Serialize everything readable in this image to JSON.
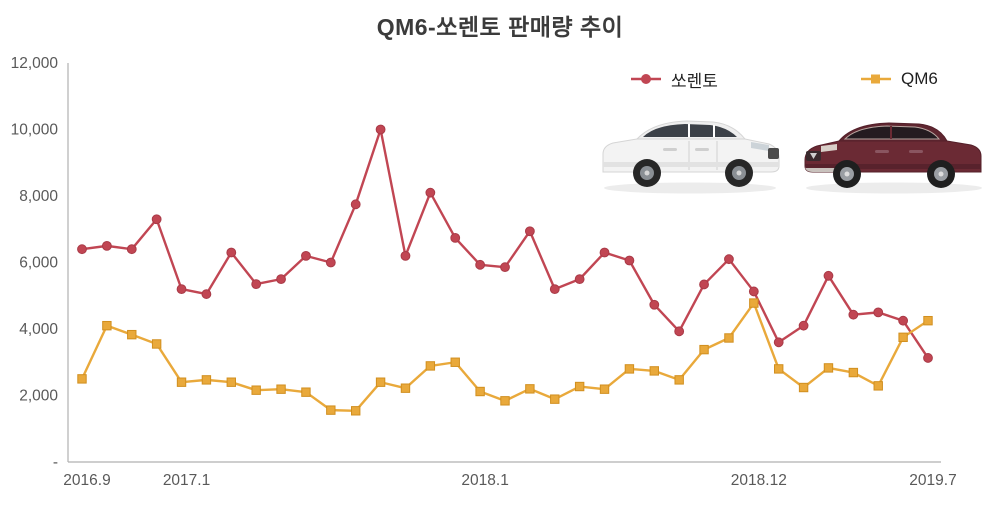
{
  "chart_data": {
    "type": "line",
    "title": "QM6-쏘렌토 판매량 추이",
    "xlabel": "",
    "ylabel": "",
    "ylim": [
      0,
      12000
    ],
    "grid": false,
    "legend_position": "top-right",
    "x_count": 35,
    "x_ticks": [
      {
        "index": 0,
        "label": "2016.9"
      },
      {
        "index": 4,
        "label": "2017.1"
      },
      {
        "index": 16,
        "label": "2018.1"
      },
      {
        "index": 27,
        "label": "2018.12"
      },
      {
        "index": 34,
        "label": "2019.7"
      }
    ],
    "y_ticks": [
      {
        "value": 0,
        "label": "-"
      },
      {
        "value": 2000,
        "label": "2,000"
      },
      {
        "value": 4000,
        "label": "4,000"
      },
      {
        "value": 6000,
        "label": "6,000"
      },
      {
        "value": 8000,
        "label": "8,000"
      },
      {
        "value": 10000,
        "label": "10,000"
      },
      {
        "value": 12000,
        "label": "12,000"
      }
    ],
    "series": [
      {
        "id": "sorento",
        "name": "쏘렌토",
        "color": "#c14653",
        "marker_border": "#a93a47",
        "marker": "circle",
        "values": [
          6400,
          6500,
          6400,
          7300,
          5200,
          5050,
          6300,
          5350,
          5500,
          6200,
          6000,
          7750,
          10000,
          6200,
          8100,
          6740,
          5930,
          5860,
          6940,
          5200,
          5500,
          6300,
          6060,
          4730,
          3930,
          5340,
          6100,
          5130,
          3600,
          4100,
          5600,
          4430,
          4500,
          4250,
          3130
        ]
      },
      {
        "id": "qm6",
        "name": "QM6",
        "color": "#e9a93b",
        "marker_border": "#d18f1f",
        "marker": "square",
        "values": [
          2500,
          4100,
          3830,
          3550,
          2400,
          2470,
          2400,
          2160,
          2190,
          2100,
          1560,
          1540,
          2400,
          2220,
          2890,
          3000,
          2120,
          1840,
          2200,
          1890,
          2270,
          2190,
          2800,
          2740,
          2470,
          3380,
          3730,
          4780,
          2800,
          2240,
          2830,
          2690,
          2290,
          3750,
          4250
        ]
      }
    ],
    "colors": {
      "axis": "#b0b0b0",
      "tick_label": "#595959",
      "title": "#3b3b3b"
    }
  },
  "images": {
    "sorento_car": "white-kia-sorento-suv-photo",
    "qm6_car": "burgundy-renault-qm6-suv-photo",
    "sorento_body_color": "#f3f3f3",
    "qm6_body_color": "#6b2a34"
  }
}
